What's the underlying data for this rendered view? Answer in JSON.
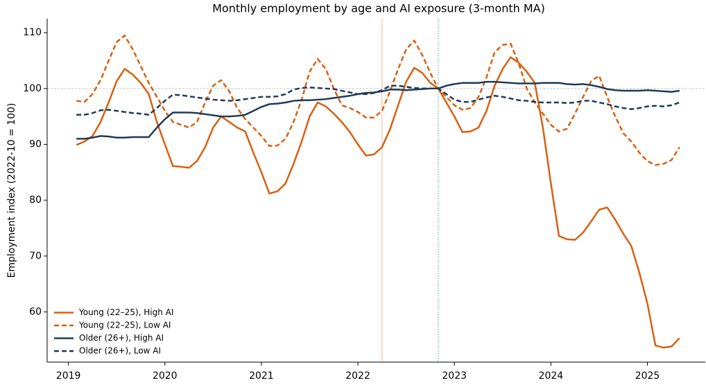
{
  "chart_data": {
    "type": "line",
    "title": "Monthly employment by age and AI exposure (3-month MA)",
    "y_label": "Employment index (2022-10 = 100)",
    "x": [
      2019.083,
      2019.167,
      2019.25,
      2019.333,
      2019.417,
      2019.5,
      2019.583,
      2019.667,
      2019.75,
      2019.833,
      2019.917,
      2020,
      2020.083,
      2020.167,
      2020.25,
      2020.333,
      2020.417,
      2020.5,
      2020.583,
      2020.667,
      2020.75,
      2020.833,
      2020.917,
      2021,
      2021.083,
      2021.167,
      2021.25,
      2021.333,
      2021.417,
      2021.5,
      2021.583,
      2021.667,
      2021.75,
      2021.833,
      2021.917,
      2022,
      2022.083,
      2022.167,
      2022.25,
      2022.333,
      2022.417,
      2022.5,
      2022.583,
      2022.667,
      2022.75,
      2022.833,
      2022.917,
      2023,
      2023.083,
      2023.167,
      2023.25,
      2023.333,
      2023.417,
      2023.5,
      2023.583,
      2023.667,
      2023.75,
      2023.833,
      2023.917,
      2024,
      2024.083,
      2024.167,
      2024.25,
      2024.333,
      2024.417,
      2024.5,
      2024.583,
      2024.667,
      2024.75,
      2024.833,
      2024.917,
      2025,
      2025.083,
      2025.167,
      2025.25,
      2025.333
    ],
    "series": [
      {
        "name": "Young (22–25), High AI",
        "color": "#d95f0e",
        "linestyle": "solid",
        "values": [
          89.9,
          90.5,
          91.5,
          94,
          97.5,
          101.3,
          103.5,
          102.5,
          101,
          99,
          94,
          90,
          86.1,
          86,
          85.8,
          87,
          89.5,
          93,
          95,
          94,
          93,
          92.3,
          88.5,
          85,
          81.2,
          81.6,
          83,
          86.5,
          90.5,
          95,
          97.5,
          96.8,
          95.5,
          94,
          92.2,
          90,
          88,
          88.2,
          89.5,
          92.7,
          97,
          101.2,
          103.7,
          102.8,
          101,
          100,
          97.5,
          95,
          92.2,
          92.3,
          93,
          96,
          100.5,
          103.5,
          105.6,
          104.6,
          103,
          101,
          93,
          83,
          73.6,
          73,
          72.9,
          74.2,
          76.2,
          78.3,
          78.7,
          76.5,
          74,
          71.8,
          67,
          61.5,
          54,
          53.6,
          53.8,
          55.3
        ]
      },
      {
        "name": "Young (22–25), Low AI",
        "color": "#d95f0e",
        "linestyle": "dashed",
        "values": [
          97.8,
          97.6,
          99,
          101.5,
          105,
          108.3,
          109.5,
          107,
          104,
          101,
          98.5,
          96,
          94,
          93.5,
          93,
          94,
          97.5,
          100.5,
          101.5,
          99.5,
          96.5,
          94.5,
          93,
          91.5,
          89.7,
          89.8,
          91,
          94,
          98,
          103,
          105.3,
          103.5,
          100,
          97,
          96.5,
          95.8,
          94.8,
          94.8,
          96,
          99.5,
          103.5,
          107,
          108.6,
          106,
          102.8,
          100,
          98.5,
          97,
          96.2,
          96.5,
          98.5,
          102,
          106.5,
          107.8,
          108,
          104.5,
          100,
          97.5,
          95.5,
          93.5,
          92.3,
          92.8,
          95.5,
          98.5,
          101.3,
          102.3,
          98.5,
          95,
          92,
          90.5,
          88.5,
          87,
          86.3,
          86.5,
          87.2,
          89.5
        ]
      },
      {
        "name": "Older (26+), High AI",
        "color": "#1f3a5a",
        "linestyle": "solid",
        "values": [
          91,
          91,
          91.2,
          91.5,
          91.4,
          91.2,
          91.2,
          91.3,
          91.3,
          91.3,
          93,
          94.5,
          95.7,
          95.7,
          95.7,
          95.6,
          95.4,
          95.2,
          95,
          95,
          95.1,
          95.3,
          96,
          96.7,
          97.2,
          97.3,
          97.5,
          97.8,
          97.9,
          97.9,
          98,
          98.1,
          98.3,
          98.5,
          98.7,
          99,
          99.2,
          99.3,
          99.5,
          99.8,
          99.8,
          99.7,
          99.8,
          99.9,
          100,
          100,
          100.5,
          100.8,
          101,
          101,
          101,
          101.2,
          101.2,
          101.1,
          101,
          100.9,
          100.9,
          100.9,
          101,
          101,
          101,
          100.8,
          100.7,
          100.8,
          100.6,
          100.3,
          99.9,
          99.7,
          99.6,
          99.6,
          99.6,
          99.7,
          99.6,
          99.5,
          99.4,
          99.6
        ]
      },
      {
        "name": "Older (26+), Low AI",
        "color": "#1f3a5a",
        "linestyle": "dashed",
        "values": [
          95.3,
          95.3,
          95.6,
          96.1,
          96.2,
          96,
          95.8,
          95.6,
          95.5,
          95.3,
          96.5,
          97.8,
          98.9,
          98.8,
          98.6,
          98.4,
          98.2,
          98,
          97.9,
          97.8,
          97.9,
          98.1,
          98.3,
          98.5,
          98.5,
          98.6,
          99,
          99.8,
          100.1,
          100.2,
          100.1,
          100,
          99.9,
          99.6,
          99.3,
          99,
          99,
          99.2,
          99.7,
          100.5,
          100.5,
          100.3,
          100.1,
          100,
          100,
          100,
          99,
          98,
          97.6,
          97.6,
          98,
          98.4,
          98.7,
          98.5,
          98.2,
          97.9,
          97.8,
          97.6,
          97.5,
          97.5,
          97.5,
          97.4,
          97.5,
          97.8,
          97.8,
          97.5,
          97.2,
          96.8,
          96.5,
          96.3,
          96.5,
          96.8,
          96.9,
          96.8,
          97,
          97.5
        ]
      }
    ],
    "xlim": [
      2018.78,
      2025.6
    ],
    "xticks": [
      2019,
      2020,
      2021,
      2022,
      2023,
      2024,
      2025
    ],
    "ylim": [
      51,
      112.5
    ],
    "yticks": [
      60,
      70,
      80,
      90,
      100,
      110
    ],
    "hline": {
      "value": 100,
      "color": "#bbbbbb"
    },
    "vlines": [
      {
        "value": 2022.25,
        "color": "#f2b49a",
        "linestyle": "solid"
      },
      {
        "value": 2022.833,
        "color": "#4a9a8c",
        "linestyle": "dotted"
      }
    ],
    "legend": "lower left"
  }
}
